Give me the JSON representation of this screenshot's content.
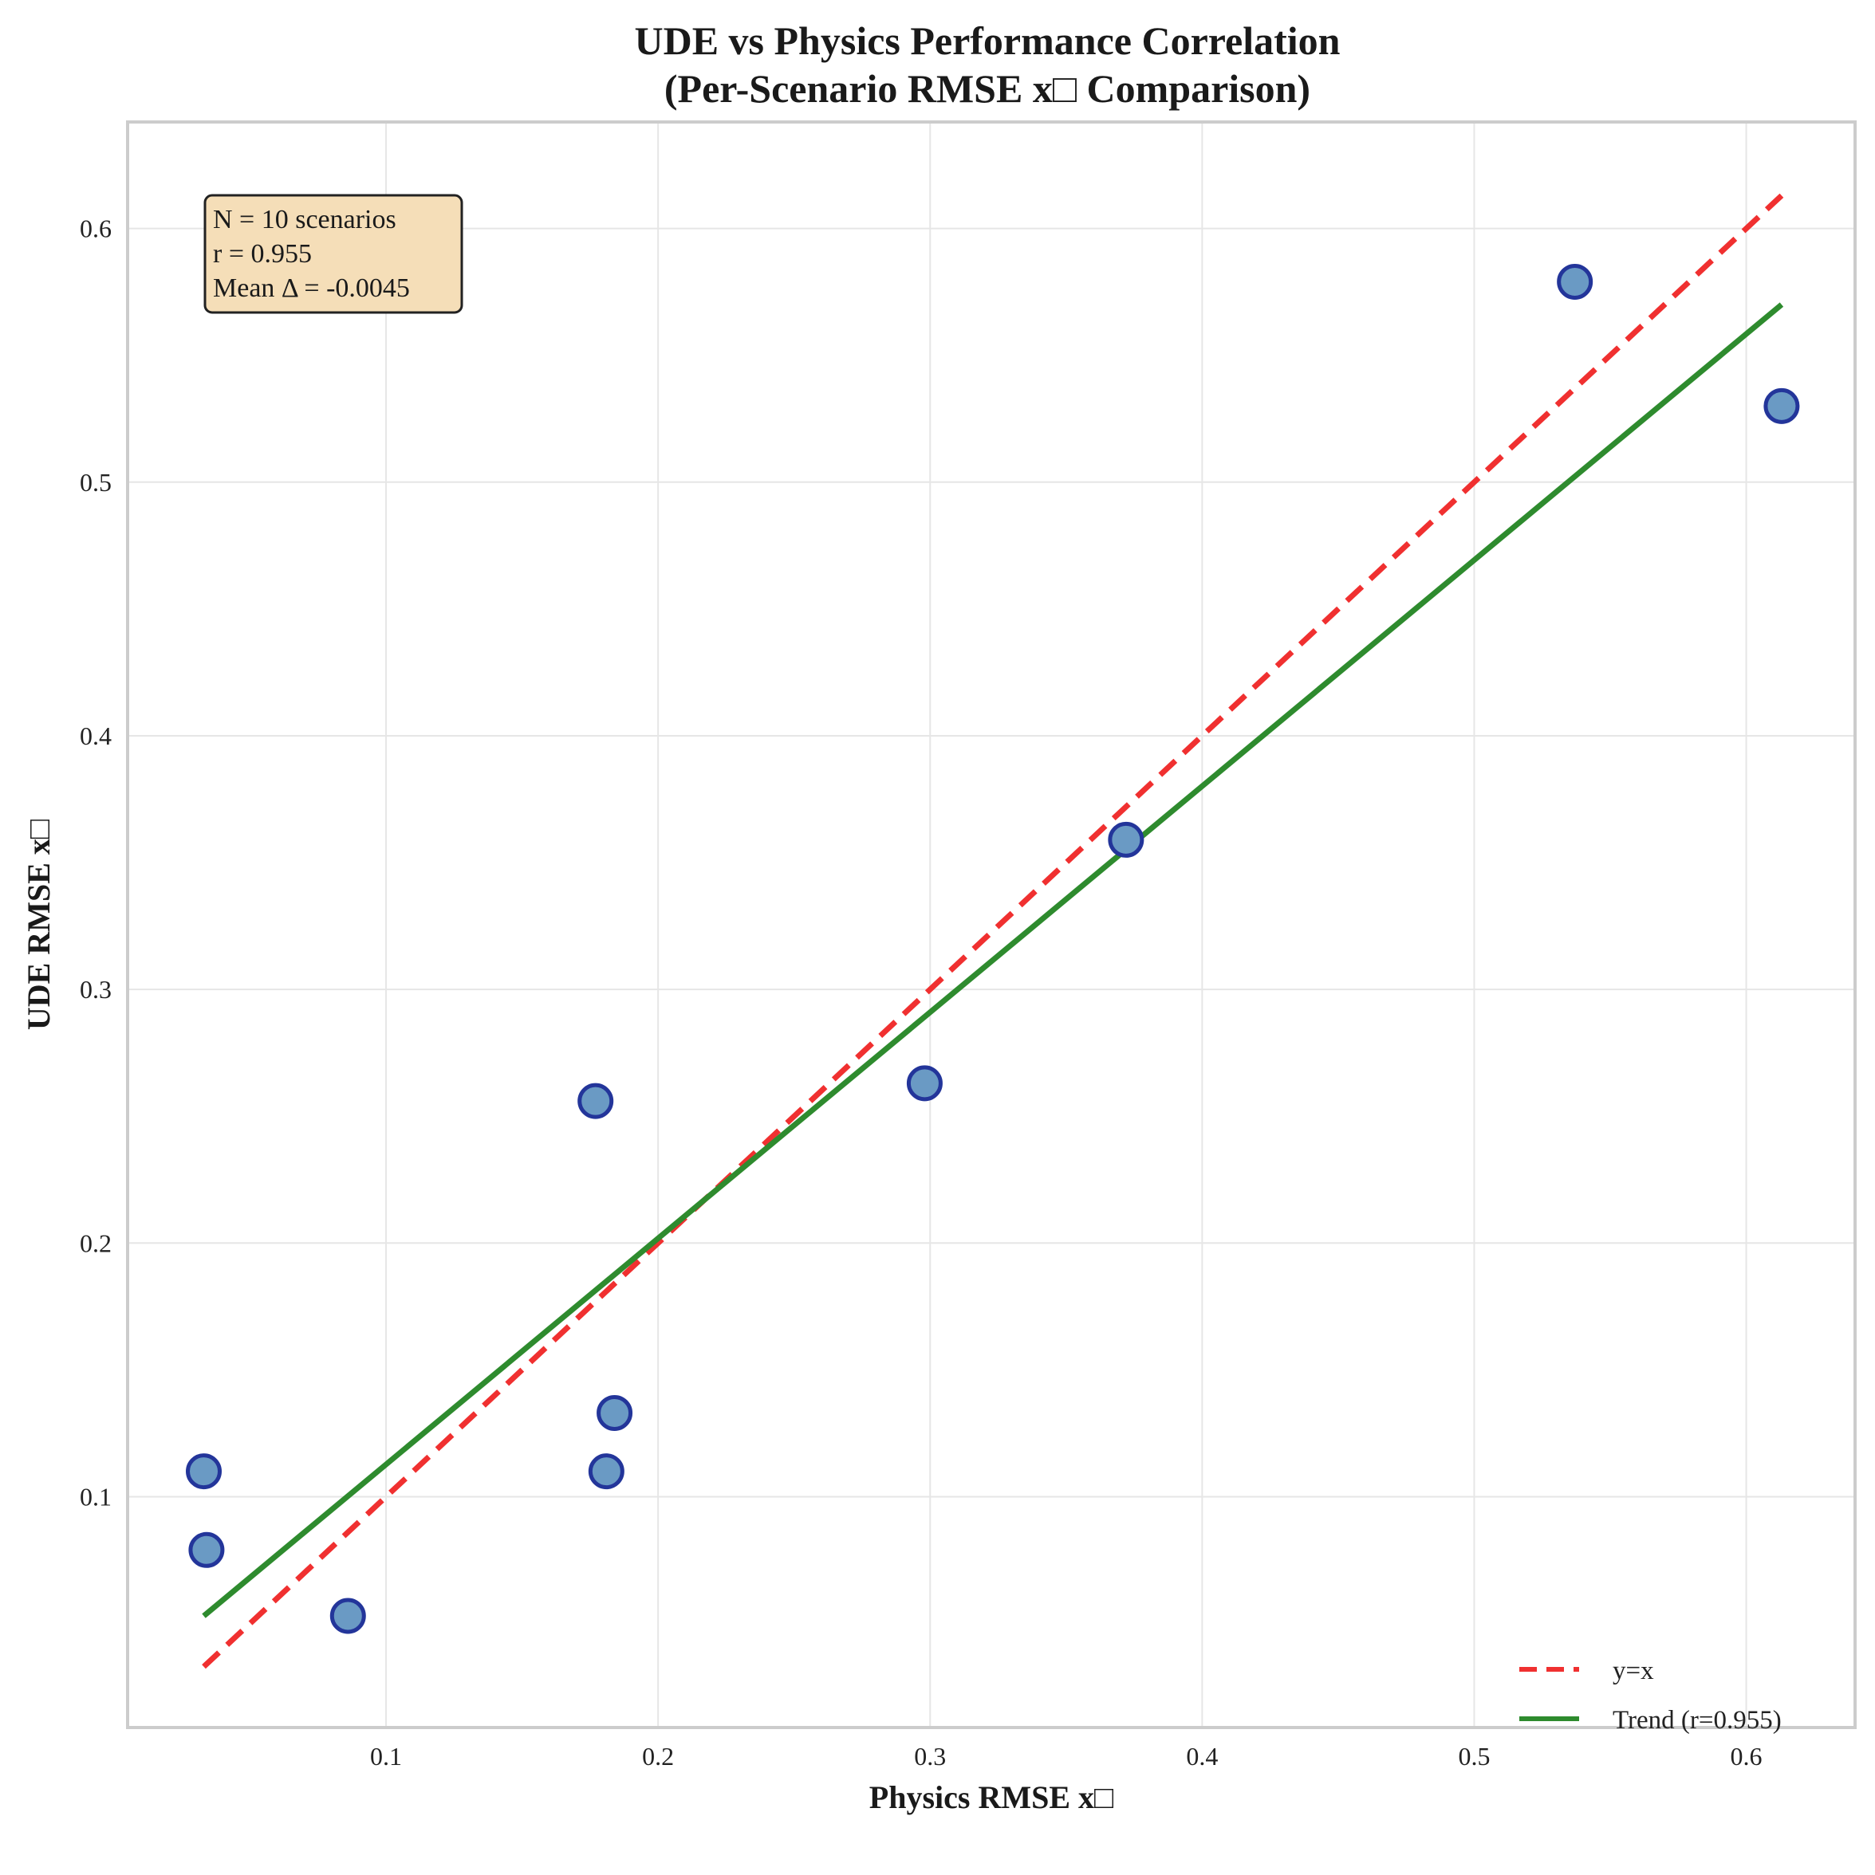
{
  "chart_data": {
    "type": "scatter",
    "title": "UDE vs Physics Performance Correlation",
    "subtitle": "(Per-Scenario RMSE x□ Comparison)",
    "xlabel": "Physics RMSE x□",
    "ylabel": "UDE RMSE x□",
    "xlim": [
      0.005,
      0.64
    ],
    "ylim": [
      0.009,
      0.642
    ],
    "xticks": [
      0.1,
      0.2,
      0.3,
      0.4,
      0.5,
      0.6
    ],
    "yticks": [
      0.1,
      0.2,
      0.3,
      0.4,
      0.5,
      0.6
    ],
    "grid": true,
    "legend_position": "bottom-right",
    "points": {
      "x": [
        0.033,
        0.034,
        0.086,
        0.177,
        0.181,
        0.184,
        0.298,
        0.372,
        0.537,
        0.613
      ],
      "y": [
        0.11,
        0.079,
        0.053,
        0.256,
        0.11,
        0.133,
        0.263,
        0.359,
        0.579,
        0.53
      ],
      "fill": "#6a9ac4",
      "edge": "#23359a"
    },
    "identity_line": {
      "name": "y=x",
      "x": [
        0.033,
        0.613
      ],
      "y": [
        0.033,
        0.613
      ],
      "color": "#f03030",
      "dashed": true
    },
    "trend_line": {
      "name": "Trend (r=0.955)",
      "x": [
        0.033,
        0.613
      ],
      "y": [
        0.053,
        0.57
      ],
      "color": "#2e8b2e"
    },
    "stats_box": {
      "lines": [
        "N = 10 scenarios",
        "r = 0.955",
        "Mean Δ = -0.0045"
      ],
      "fill": "#f5deb8"
    }
  }
}
